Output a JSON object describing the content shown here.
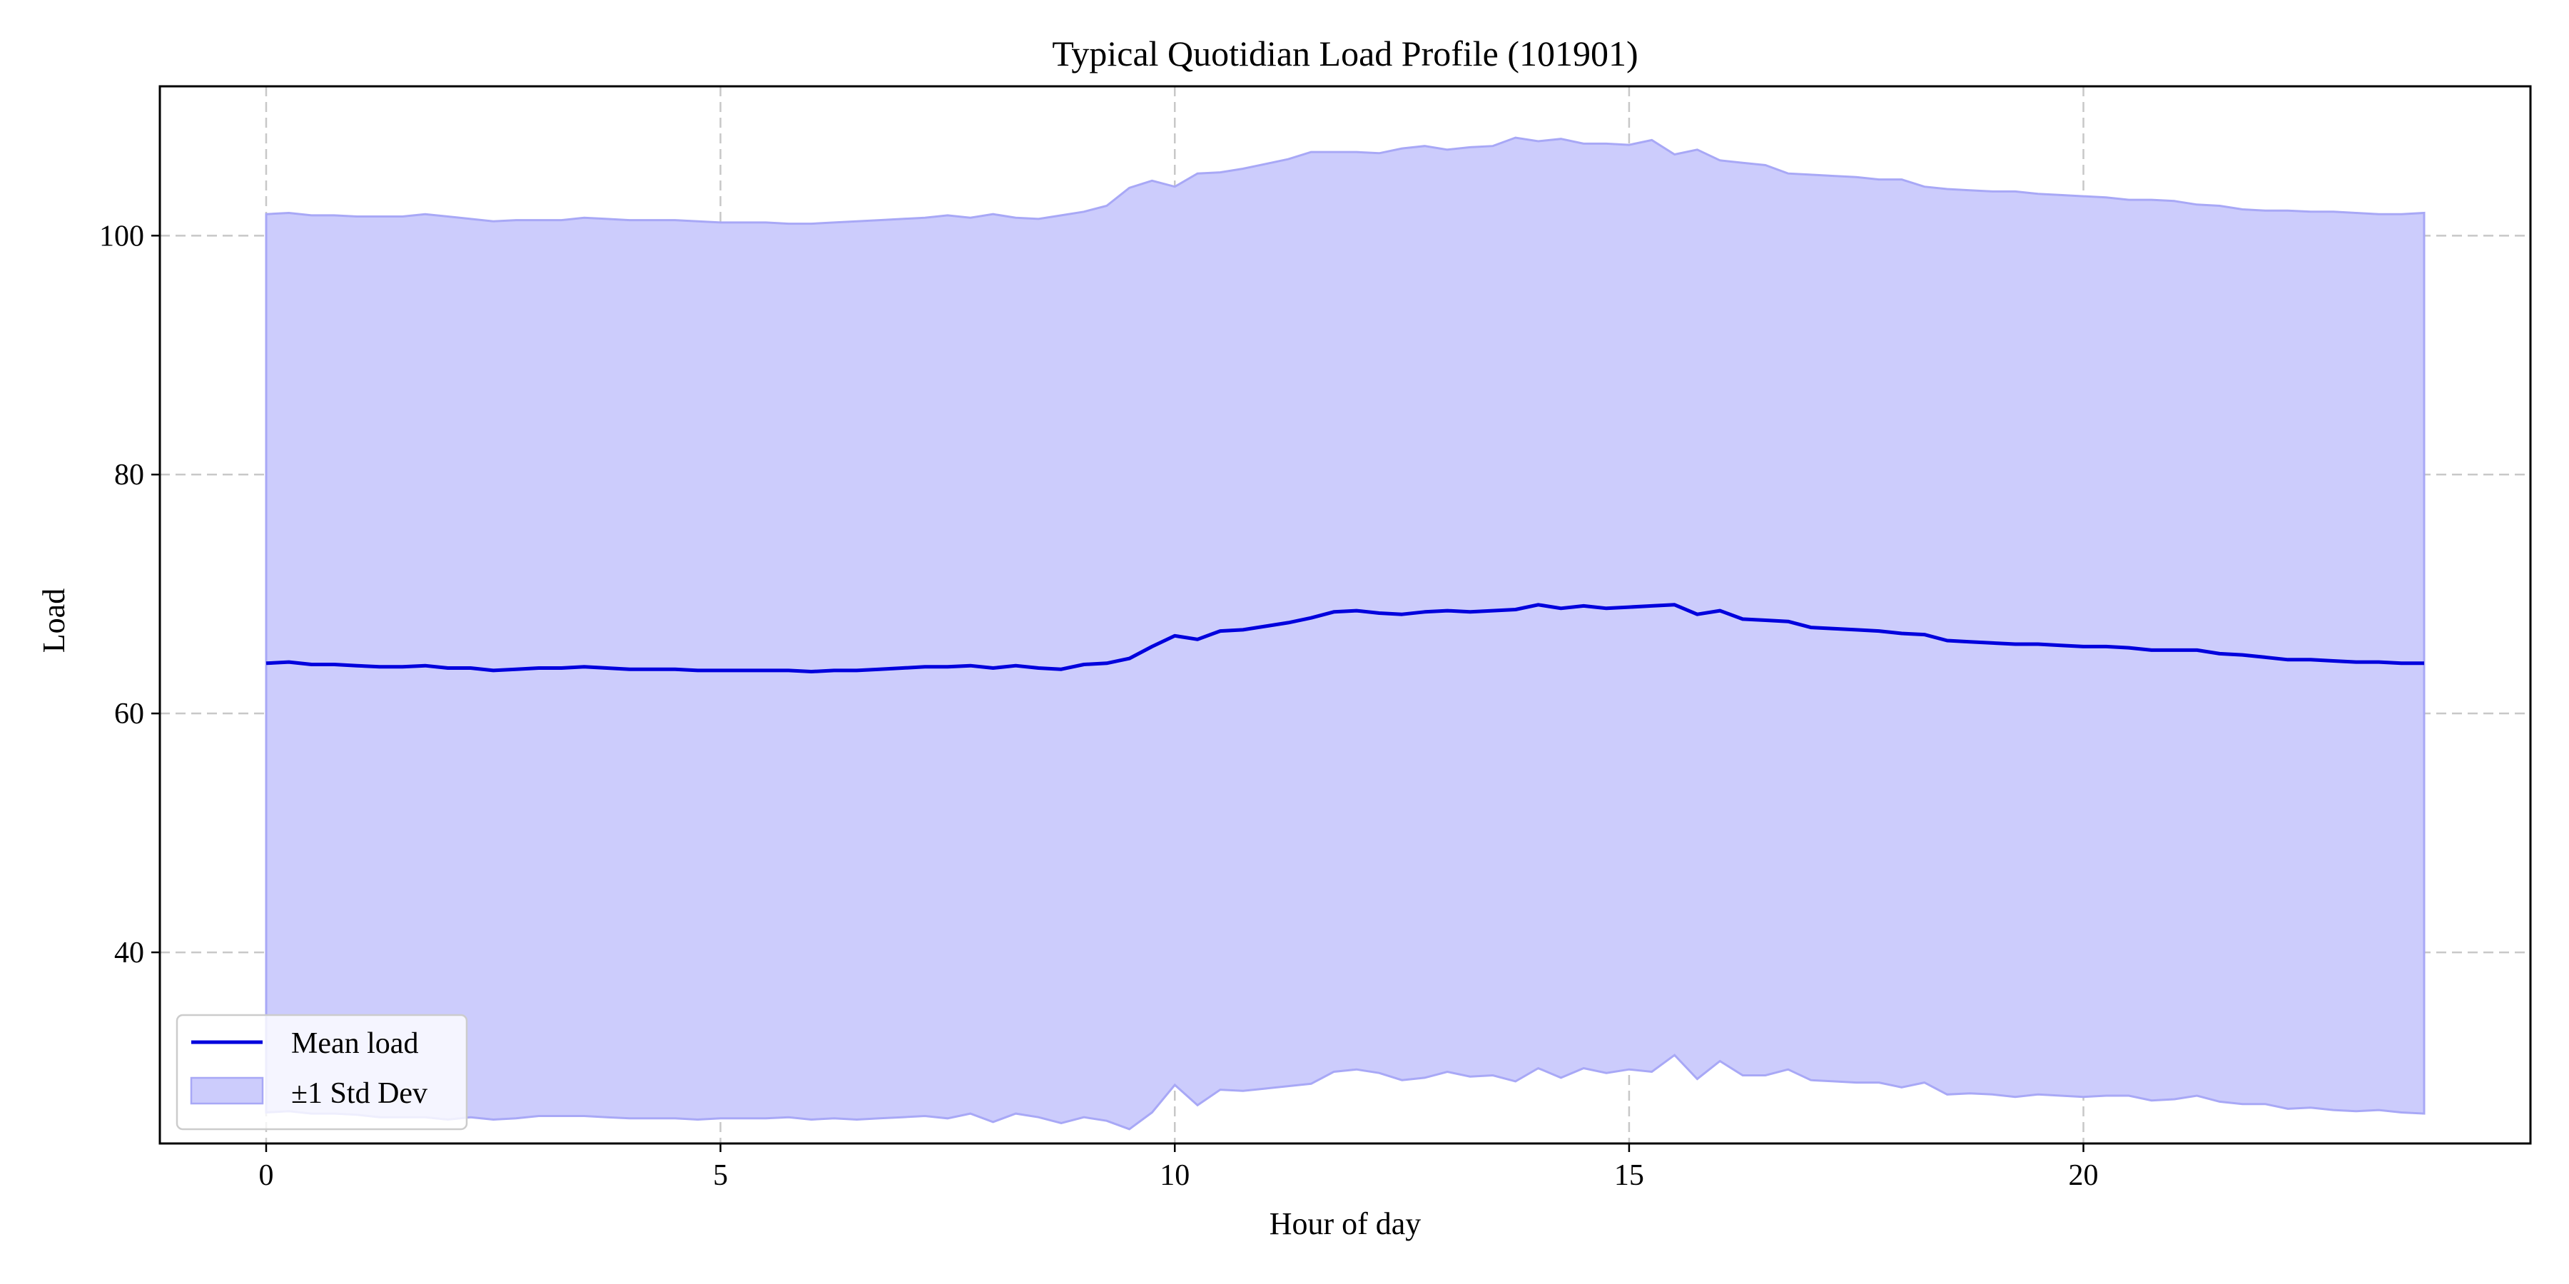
{
  "chart_data": {
    "type": "area",
    "title": "Typical Quotidian Load Profile (101901)",
    "xlabel": "Hour of day",
    "ylabel": "Load",
    "xlim": [
      -1.17,
      24.92
    ],
    "ylim": [
      24.0,
      112.5
    ],
    "xticks": [
      0,
      5,
      10,
      15,
      20
    ],
    "yticks": [
      40,
      60,
      80,
      100
    ],
    "grid": true,
    "legend_position": "lower-left",
    "colors": {
      "mean": "#0000dd",
      "band_fill": "#ccccfc",
      "band_edge": "#a8a8f6"
    },
    "legend": {
      "mean_label": "Mean load",
      "band_label": "±1 Std Dev"
    },
    "series": [
      {
        "name": "Mean load",
        "x": [
          0,
          0.25,
          0.5,
          0.75,
          1,
          1.25,
          1.5,
          1.75,
          2,
          2.25,
          2.5,
          2.75,
          3,
          3.25,
          3.5,
          3.75,
          4,
          4.25,
          4.5,
          4.75,
          5,
          5.25,
          5.5,
          5.75,
          6,
          6.25,
          6.5,
          6.75,
          7,
          7.25,
          7.5,
          7.75,
          8,
          8.25,
          8.5,
          8.75,
          9,
          9.25,
          9.5,
          9.75,
          10,
          10.25,
          10.5,
          10.75,
          11,
          11.25,
          11.5,
          11.75,
          12,
          12.25,
          12.5,
          12.75,
          13,
          13.25,
          13.5,
          13.75,
          14,
          14.25,
          14.5,
          14.75,
          15,
          15.25,
          15.5,
          15.75,
          16,
          16.25,
          16.5,
          16.75,
          17,
          17.25,
          17.5,
          17.75,
          18,
          18.25,
          18.5,
          18.75,
          19,
          19.25,
          19.5,
          19.75,
          20,
          20.25,
          20.5,
          20.75,
          21,
          21.25,
          21.5,
          21.75,
          22,
          22.25,
          22.5,
          22.75,
          23,
          23.25,
          23.5,
          23.75
        ],
        "values": [
          64.2,
          64.3,
          64.1,
          64.1,
          64.0,
          63.9,
          63.9,
          64.0,
          63.8,
          63.8,
          63.6,
          63.7,
          63.8,
          63.8,
          63.9,
          63.8,
          63.7,
          63.7,
          63.7,
          63.6,
          63.6,
          63.6,
          63.6,
          63.6,
          63.5,
          63.6,
          63.6,
          63.7,
          63.8,
          63.9,
          63.9,
          64.0,
          63.8,
          64.0,
          63.8,
          63.7,
          64.1,
          64.2,
          64.6,
          65.6,
          66.5,
          66.2,
          66.9,
          67.0,
          67.3,
          67.6,
          68.0,
          68.5,
          68.6,
          68.4,
          68.3,
          68.5,
          68.6,
          68.5,
          68.6,
          68.7,
          69.1,
          68.8,
          69.0,
          68.8,
          68.9,
          69.0,
          69.1,
          68.3,
          68.6,
          67.9,
          67.8,
          67.7,
          67.2,
          67.1,
          67.0,
          66.9,
          66.7,
          66.6,
          66.1,
          66.0,
          65.9,
          65.8,
          65.8,
          65.7,
          65.6,
          65.6,
          65.5,
          65.3,
          65.3,
          65.3,
          65.0,
          64.9,
          64.7,
          64.5,
          64.5,
          64.4,
          64.3,
          64.3,
          64.2,
          64.2
        ]
      },
      {
        "name": "±1 Std Dev",
        "x": [
          0,
          0.25,
          0.5,
          0.75,
          1,
          1.25,
          1.5,
          1.75,
          2,
          2.25,
          2.5,
          2.75,
          3,
          3.25,
          3.5,
          3.75,
          4,
          4.25,
          4.5,
          4.75,
          5,
          5.25,
          5.5,
          5.75,
          6,
          6.25,
          6.5,
          6.75,
          7,
          7.25,
          7.5,
          7.75,
          8,
          8.25,
          8.5,
          8.75,
          9,
          9.25,
          9.5,
          9.75,
          10,
          10.25,
          10.5,
          10.75,
          11,
          11.25,
          11.5,
          11.75,
          12,
          12.25,
          12.5,
          12.75,
          13,
          13.25,
          13.5,
          13.75,
          14,
          14.25,
          14.5,
          14.75,
          15,
          15.25,
          15.5,
          15.75,
          16,
          16.25,
          16.5,
          16.75,
          17,
          17.25,
          17.5,
          17.75,
          18,
          18.25,
          18.5,
          18.75,
          19,
          19.25,
          19.5,
          19.75,
          20,
          20.25,
          20.5,
          20.75,
          21,
          21.25,
          21.5,
          21.75,
          22,
          22.25,
          22.5,
          22.75,
          23,
          23.25,
          23.5,
          23.75
        ],
        "upper": [
          101.8,
          101.9,
          101.7,
          101.7,
          101.6,
          101.6,
          101.6,
          101.8,
          101.6,
          101.4,
          101.2,
          101.3,
          101.3,
          101.3,
          101.5,
          101.4,
          101.3,
          101.3,
          101.3,
          101.2,
          101.1,
          101.1,
          101.1,
          101.0,
          101.0,
          101.1,
          101.2,
          101.3,
          101.4,
          101.5,
          101.7,
          101.5,
          101.8,
          101.5,
          101.4,
          101.7,
          102.0,
          102.5,
          104.0,
          104.6,
          104.1,
          105.2,
          105.3,
          105.6,
          106.0,
          106.4,
          107.0,
          107.0,
          107.0,
          106.9,
          107.3,
          107.5,
          107.2,
          107.4,
          107.5,
          108.2,
          107.9,
          108.1,
          107.7,
          107.7,
          107.6,
          108.0,
          106.8,
          107.2,
          106.3,
          106.1,
          105.9,
          105.2,
          105.1,
          105.0,
          104.9,
          104.7,
          104.7,
          104.1,
          103.9,
          103.8,
          103.7,
          103.7,
          103.5,
          103.4,
          103.3,
          103.2,
          103.0,
          103.0,
          102.9,
          102.6,
          102.5,
          102.2,
          102.1,
          102.1,
          102.0,
          102.0,
          101.9,
          101.8,
          101.8,
          101.9
        ],
        "lower": [
          26.6,
          26.7,
          26.5,
          26.5,
          26.4,
          26.2,
          26.2,
          26.2,
          26.0,
          26.2,
          26.0,
          26.1,
          26.3,
          26.3,
          26.3,
          26.2,
          26.1,
          26.1,
          26.1,
          26.0,
          26.1,
          26.1,
          26.1,
          26.2,
          26.0,
          26.1,
          26.0,
          26.1,
          26.2,
          26.3,
          26.1,
          26.5,
          25.8,
          26.5,
          26.2,
          25.7,
          26.2,
          25.9,
          25.2,
          26.6,
          28.9,
          27.2,
          28.5,
          28.4,
          28.6,
          28.8,
          29.0,
          30.0,
          30.2,
          29.9,
          29.3,
          29.5,
          30.0,
          29.6,
          29.7,
          29.2,
          30.3,
          29.5,
          30.3,
          29.9,
          30.2,
          30.0,
          31.4,
          29.4,
          30.9,
          29.7,
          29.7,
          30.2,
          29.3,
          29.2,
          29.1,
          29.1,
          28.7,
          29.1,
          28.1,
          28.2,
          28.1,
          27.9,
          28.1,
          28.0,
          27.9,
          28.0,
          28.0,
          27.6,
          27.7,
          28.0,
          27.5,
          27.3,
          27.3,
          26.9,
          27.0,
          26.8,
          26.7,
          26.8,
          26.6,
          26.5
        ]
      }
    ]
  }
}
